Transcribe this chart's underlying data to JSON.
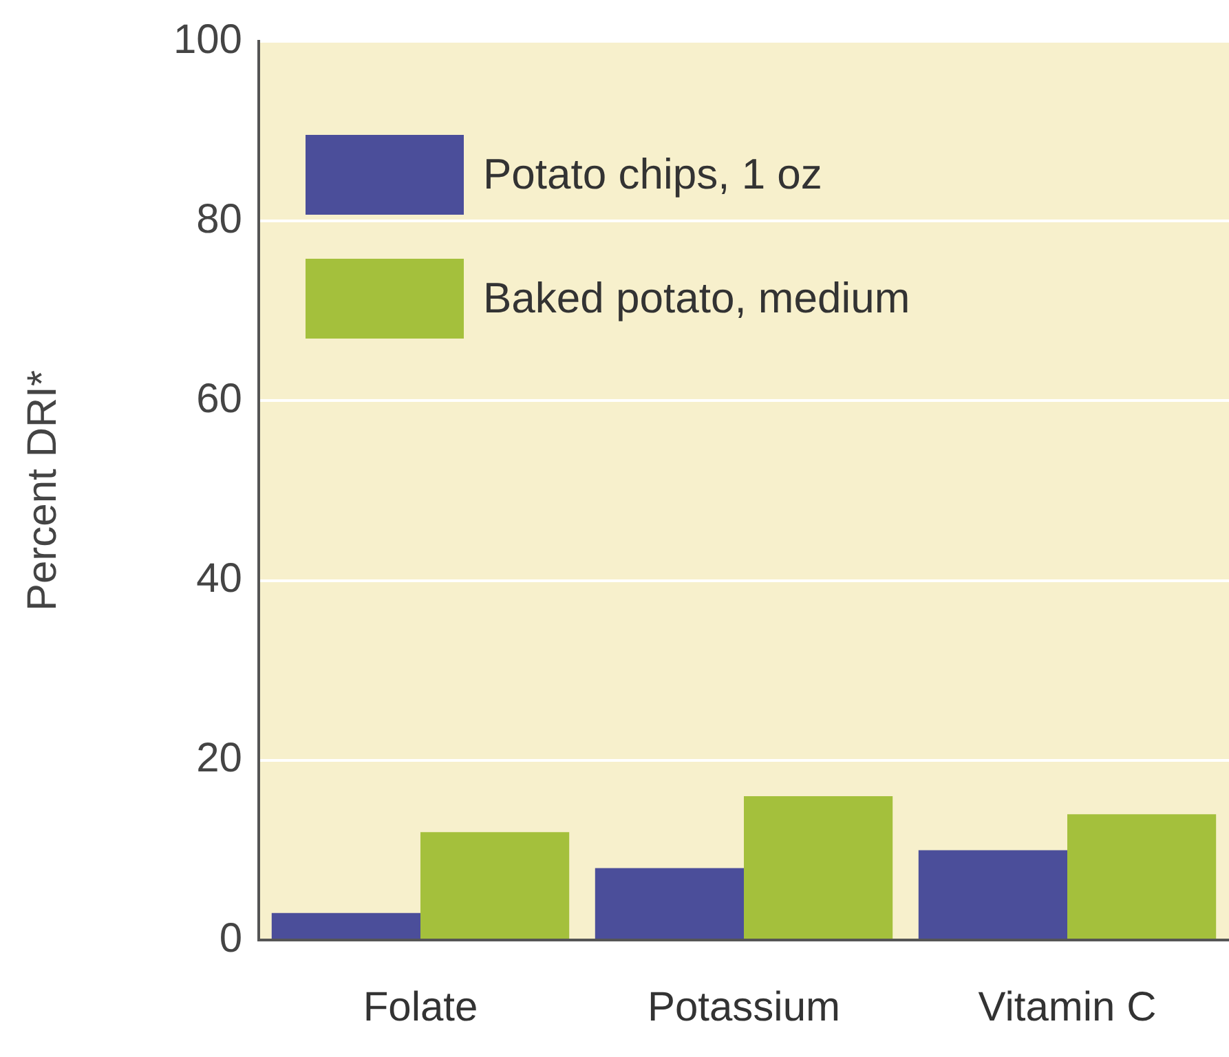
{
  "chart_data": {
    "type": "bar",
    "ylabel": "Percent DRI*",
    "categories": [
      "Folate",
      "Potassium",
      "Vitamin C"
    ],
    "series": [
      {
        "name": "Potato chips, 1 oz",
        "color": "#4b4e9a",
        "values": [
          3,
          8,
          10
        ]
      },
      {
        "name": "Baked potato, medium",
        "color": "#a4c03c",
        "values": [
          12,
          16,
          14
        ]
      }
    ],
    "ylim": [
      0,
      100
    ],
    "yticks": [
      0,
      20,
      40,
      60,
      80,
      100
    ],
    "grid": "y",
    "legend": "top left"
  }
}
